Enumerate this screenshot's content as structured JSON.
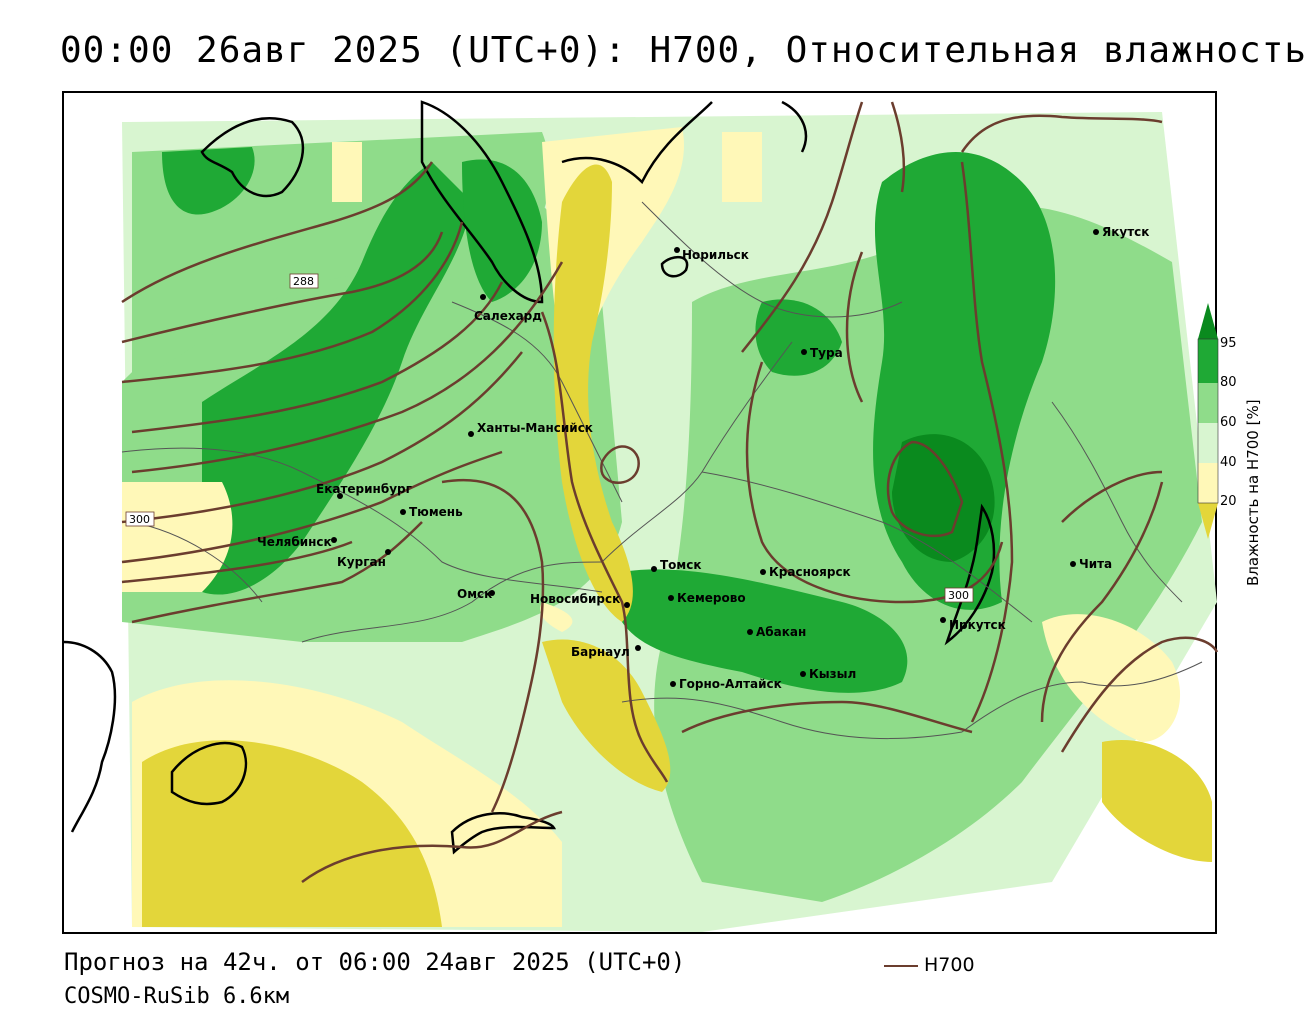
{
  "title": "00:00 26авг 2025 (UTC+0): H700, Относительная влажность",
  "footer": {
    "forecast": "Прогноз на 42ч. от 06:00 24авг 2025 (UTC+0)",
    "model": "COSMO-RuSib 6.6км"
  },
  "legend": {
    "line_label": "H700",
    "line_color": "#6b3d2e",
    "colorbar_title": "Влажность на H700 [%]",
    "ticks": [
      "95",
      "80",
      "60",
      "40",
      "20"
    ],
    "colors": {
      "over95": "#0a8a1e",
      "c80_95": "#1fa935",
      "c60_80": "#8fdc8a",
      "c40_60": "#d8f5d0",
      "c20_40": "#fff8b8",
      "under20": "#e3d63a"
    }
  },
  "contour_labels": [
    "288",
    "300",
    "300"
  ],
  "cities": [
    {
      "id": "norilsk",
      "name": "Норильск"
    },
    {
      "id": "yakutsk",
      "name": "Якутск"
    },
    {
      "id": "salekhard",
      "name": "Салехард"
    },
    {
      "id": "tura",
      "name": "Тура"
    },
    {
      "id": "khanty",
      "name": "Ханты-Мансийск"
    },
    {
      "id": "ekaterinburg",
      "name": "Екатеринбург"
    },
    {
      "id": "tyumen",
      "name": "Тюмень"
    },
    {
      "id": "chelyabinsk",
      "name": "Челябинск"
    },
    {
      "id": "kurgan",
      "name": "Курган"
    },
    {
      "id": "omsk",
      "name": "Омск"
    },
    {
      "id": "novosibirsk",
      "name": "Новосибирск"
    },
    {
      "id": "tomsk",
      "name": "Томск"
    },
    {
      "id": "kemerovo",
      "name": "Кемерово"
    },
    {
      "id": "krasnoyarsk",
      "name": "Красноярск"
    },
    {
      "id": "abakan",
      "name": "Абакан"
    },
    {
      "id": "barnaul",
      "name": "Барнаул"
    },
    {
      "id": "gorno",
      "name": "Горно-Алтайск"
    },
    {
      "id": "kyzyl",
      "name": "Кызыл"
    },
    {
      "id": "irkutsk",
      "name": "Иркутск"
    },
    {
      "id": "chita",
      "name": "Чита"
    }
  ]
}
